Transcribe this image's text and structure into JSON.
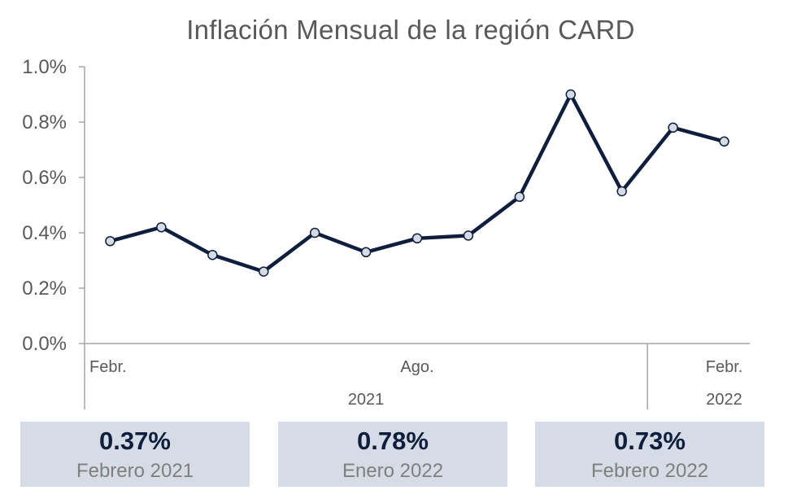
{
  "chart_data": {
    "type": "line",
    "title": "Inflación Mensual de la región CARD",
    "xlabel": "",
    "ylabel": "",
    "ylim": [
      0,
      0.01
    ],
    "yticks": [
      "0.0%",
      "0.2%",
      "0.4%",
      "0.6%",
      "0.8%",
      "1.0%"
    ],
    "x_month_labels": [
      {
        "index": 0,
        "label": "Febr."
      },
      {
        "index": 6,
        "label": "Ago."
      },
      {
        "index": 12,
        "label": "Febr."
      }
    ],
    "x_year_labels": [
      {
        "year": "2021",
        "from": 0,
        "to": 10
      },
      {
        "year": "2022",
        "from": 11,
        "to": 12
      }
    ],
    "x": [
      "2021-02",
      "2021-03",
      "2021-04",
      "2021-05",
      "2021-06",
      "2021-07",
      "2021-08",
      "2021-09",
      "2021-10",
      "2021-11",
      "2021-12",
      "2022-01",
      "2022-02"
    ],
    "series": [
      {
        "values": [
          0.0037,
          0.0042,
          0.0032,
          0.0026,
          0.004,
          0.0033,
          0.0038,
          0.0039,
          0.0053,
          0.009,
          0.0055,
          0.0078,
          0.0073
        ],
        "color": "#0f1e3c",
        "marker_fill": "#d6dce5"
      }
    ],
    "grid": false,
    "legend": "none"
  },
  "summary_cards": [
    {
      "value": "0.37%",
      "label": "Febrero 2021"
    },
    {
      "value": "0.78%",
      "label": "Enero 2022"
    },
    {
      "value": "0.73%",
      "label": "Febrero 2022"
    }
  ],
  "colors": {
    "line": "#0f1e3c",
    "card_bg": "#d6dce5",
    "axis": "#a6a6a6",
    "text": "#595959"
  }
}
